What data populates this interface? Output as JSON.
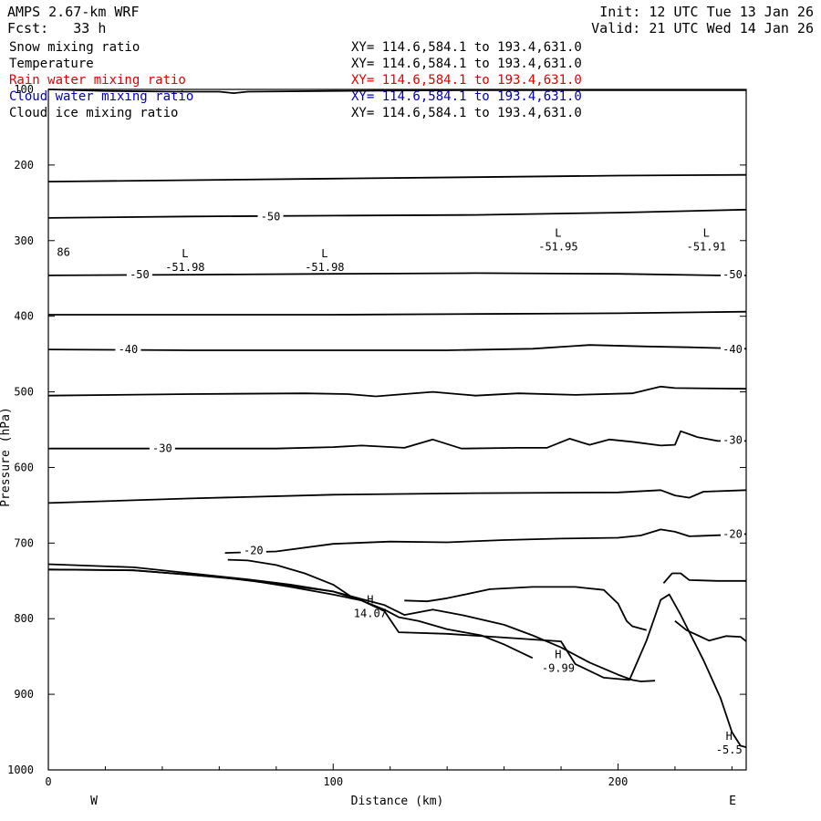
{
  "header": {
    "model": "AMPS 2.67-km WRF",
    "forecast": "Fcst:   33 h",
    "init": "Init: 12 UTC Tue 13 Jan 26",
    "valid": "Valid: 21 UTC Wed 14 Jan 26"
  },
  "fields": [
    {
      "name": "Snow mixing ratio",
      "xy": "XY= 114.6,584.1 to 193.4,631.0",
      "color": "#000000"
    },
    {
      "name": "Temperature",
      "xy": "XY= 114.6,584.1 to 193.4,631.0",
      "color": "#000000"
    },
    {
      "name": "Rain water mixing ratio",
      "xy": "XY= 114.6,584.1 to 193.4,631.0",
      "color": "#e00000"
    },
    {
      "name": "Cloud water mixing ratio",
      "xy": "XY= 114.6,584.1 to 193.4,631.0",
      "color": "#0000c0"
    },
    {
      "name": "Cloud ice mixing ratio",
      "xy": "XY= 114.6,584.1 to 193.4,631.0",
      "color": "#000000"
    }
  ],
  "chart_data": {
    "type": "line",
    "xlabel": "Distance (km)",
    "ylabel": "Pressure (hPa)",
    "xlim": [
      0,
      245
    ],
    "ylim": [
      1000,
      100
    ],
    "xticks": [
      0,
      100,
      200
    ],
    "yticks": [
      100,
      200,
      300,
      400,
      500,
      600,
      700,
      800,
      900,
      1000
    ],
    "x_end_labels": {
      "left": "W",
      "right": "E"
    },
    "isotherms": [
      {
        "label": "",
        "points": [
          [
            0,
            100
          ],
          [
            20,
            102
          ],
          [
            45,
            103
          ],
          [
            60,
            103
          ],
          [
            65,
            105
          ],
          [
            70,
            103
          ],
          [
            100,
            102
          ],
          [
            150,
            101
          ],
          [
            200,
            101
          ],
          [
            245,
            101
          ]
        ]
      },
      {
        "label": "",
        "points": [
          [
            0,
            222
          ],
          [
            50,
            220
          ],
          [
            100,
            218
          ],
          [
            150,
            216
          ],
          [
            200,
            214
          ],
          [
            245,
            213
          ]
        ]
      },
      {
        "label": "-50",
        "label_at": [
          78,
          268
        ],
        "points": [
          [
            0,
            270
          ],
          [
            50,
            268
          ],
          [
            100,
            267
          ],
          [
            150,
            266
          ],
          [
            200,
            263
          ],
          [
            245,
            259
          ]
        ]
      },
      {
        "label": "-50",
        "label_at": [
          32,
          345
        ],
        "points": [
          [
            0,
            346
          ],
          [
            50,
            345
          ],
          [
            100,
            344
          ],
          [
            150,
            343
          ],
          [
            200,
            344
          ],
          [
            235,
            346
          ],
          [
            245,
            346
          ]
        ]
      },
      {
        "label": "",
        "points": [
          [
            0,
            398
          ],
          [
            50,
            398
          ],
          [
            100,
            398
          ],
          [
            150,
            397
          ],
          [
            200,
            396
          ],
          [
            245,
            394
          ]
        ]
      },
      {
        "label": "-40",
        "label_at": [
          28,
          444
        ],
        "points": [
          [
            0,
            444
          ],
          [
            50,
            445
          ],
          [
            100,
            445
          ],
          [
            140,
            445
          ],
          [
            170,
            443
          ],
          [
            190,
            438
          ],
          [
            210,
            440
          ],
          [
            225,
            441
          ],
          [
            245,
            443
          ]
        ]
      },
      {
        "label": "",
        "points": [
          [
            0,
            505
          ],
          [
            50,
            503
          ],
          [
            90,
            502
          ],
          [
            105,
            503
          ],
          [
            115,
            506
          ],
          [
            125,
            503
          ],
          [
            135,
            500
          ],
          [
            150,
            505
          ],
          [
            165,
            502
          ],
          [
            185,
            504
          ],
          [
            205,
            502
          ],
          [
            215,
            493
          ],
          [
            220,
            495
          ],
          [
            245,
            496
          ]
        ]
      },
      {
        "label": "-30",
        "label_at": [
          40,
          575
        ],
        "points": [
          [
            0,
            575
          ],
          [
            40,
            575
          ],
          [
            80,
            575
          ],
          [
            100,
            573
          ],
          [
            110,
            571
          ],
          [
            125,
            574
          ],
          [
            135,
            563
          ],
          [
            145,
            575
          ],
          [
            165,
            574
          ],
          [
            175,
            574
          ],
          [
            183,
            562
          ],
          [
            190,
            570
          ],
          [
            197,
            563
          ],
          [
            205,
            566
          ],
          [
            215,
            571
          ],
          [
            220,
            570
          ],
          [
            222,
            552
          ],
          [
            228,
            560
          ],
          [
            235,
            565
          ],
          [
            245,
            565
          ]
        ]
      },
      {
        "label": "",
        "points": [
          [
            0,
            647
          ],
          [
            50,
            641
          ],
          [
            100,
            636
          ],
          [
            150,
            634
          ],
          [
            200,
            633
          ],
          [
            215,
            630
          ],
          [
            220,
            637
          ],
          [
            225,
            640
          ],
          [
            230,
            632
          ],
          [
            245,
            630
          ]
        ]
      },
      {
        "label": "-20",
        "label_at": [
          72,
          710
        ],
        "points": [
          [
            62,
            713
          ],
          [
            80,
            711
          ],
          [
            100,
            701
          ],
          [
            120,
            698
          ],
          [
            140,
            699
          ],
          [
            160,
            696
          ],
          [
            180,
            694
          ],
          [
            200,
            693
          ],
          [
            208,
            690
          ],
          [
            215,
            682
          ],
          [
            220,
            685
          ],
          [
            225,
            691
          ],
          [
            240,
            689
          ],
          [
            245,
            688
          ]
        ]
      },
      {
        "label": "",
        "points": [
          [
            0,
            735
          ],
          [
            30,
            736
          ],
          [
            50,
            742
          ],
          [
            70,
            749
          ],
          [
            85,
            758
          ],
          [
            100,
            768
          ],
          [
            110,
            776
          ],
          [
            118,
            788
          ],
          [
            123,
            798
          ],
          [
            130,
            803
          ],
          [
            140,
            814
          ],
          [
            152,
            822
          ],
          [
            160,
            834
          ],
          [
            170,
            852
          ]
        ]
      },
      {
        "label": "",
        "points": [
          [
            0,
            728
          ],
          [
            30,
            732
          ],
          [
            50,
            740
          ],
          [
            70,
            748
          ],
          [
            85,
            755
          ],
          [
            100,
            764
          ],
          [
            110,
            774
          ],
          [
            118,
            782
          ],
          [
            125,
            795
          ],
          [
            135,
            788
          ],
          [
            145,
            795
          ],
          [
            160,
            808
          ],
          [
            170,
            822
          ],
          [
            180,
            838
          ],
          [
            190,
            858
          ],
          [
            200,
            874
          ],
          [
            205,
            881
          ],
          [
            208,
            883
          ],
          [
            213,
            882
          ]
        ]
      },
      {
        "label": "",
        "points": [
          [
            63,
            722
          ],
          [
            70,
            723
          ],
          [
            80,
            729
          ],
          [
            90,
            740
          ],
          [
            100,
            755
          ],
          [
            106,
            770
          ]
        ]
      },
      {
        "label": "",
        "points": [
          [
            125,
            776
          ],
          [
            133,
            777
          ],
          [
            140,
            773
          ],
          [
            155,
            761
          ],
          [
            170,
            758
          ],
          [
            185,
            758
          ],
          [
            195,
            762
          ],
          [
            200,
            780
          ],
          [
            203,
            803
          ],
          [
            205,
            810
          ],
          [
            210,
            815
          ]
        ]
      },
      {
        "label": "",
        "points": [
          [
            216,
            753
          ],
          [
            219,
            740
          ],
          [
            222,
            740
          ],
          [
            225,
            749
          ],
          [
            235,
            750
          ],
          [
            245,
            750
          ]
        ]
      },
      {
        "label": "",
        "points": [
          [
            220,
            803
          ],
          [
            224,
            815
          ],
          [
            228,
            822
          ],
          [
            232,
            829
          ],
          [
            238,
            823
          ],
          [
            243,
            824
          ],
          [
            245,
            830
          ]
        ]
      }
    ],
    "terrain": [
      [
        0,
        735
      ],
      [
        30,
        736
      ],
      [
        60,
        745
      ],
      [
        80,
        754
      ],
      [
        100,
        764
      ],
      [
        110,
        776
      ],
      [
        118,
        790
      ],
      [
        123,
        818
      ],
      [
        140,
        820
      ],
      [
        160,
        825
      ],
      [
        180,
        830
      ],
      [
        185,
        860
      ],
      [
        195,
        878
      ],
      [
        204,
        881
      ],
      [
        210,
        829
      ],
      [
        215,
        775
      ],
      [
        218,
        768
      ],
      [
        222,
        795
      ],
      [
        230,
        855
      ],
      [
        236,
        905
      ],
      [
        240,
        950
      ],
      [
        243,
        968
      ],
      [
        245,
        970
      ]
    ],
    "extrema": [
      {
        "kind": "L",
        "value": "-51.98",
        "x": 48,
        "y": 322
      },
      {
        "kind": "L",
        "value": "-51.98",
        "x": 97,
        "y": 322
      },
      {
        "kind": "L",
        "value": "-51.95",
        "x": 179,
        "y": 295
      },
      {
        "kind": "L",
        "value": "-51.91",
        "x": 231,
        "y": 295
      },
      {
        "kind": "H",
        "value": "14.07",
        "x": 113,
        "y": 780
      },
      {
        "kind": "H",
        "value": "-9.99",
        "x": 179,
        "y": 852
      },
      {
        "kind": "H",
        "value": "-5.5",
        "x": 239,
        "y": 960
      }
    ],
    "edge_label": {
      "value": "86",
      "x": 3,
      "y": 320
    }
  }
}
